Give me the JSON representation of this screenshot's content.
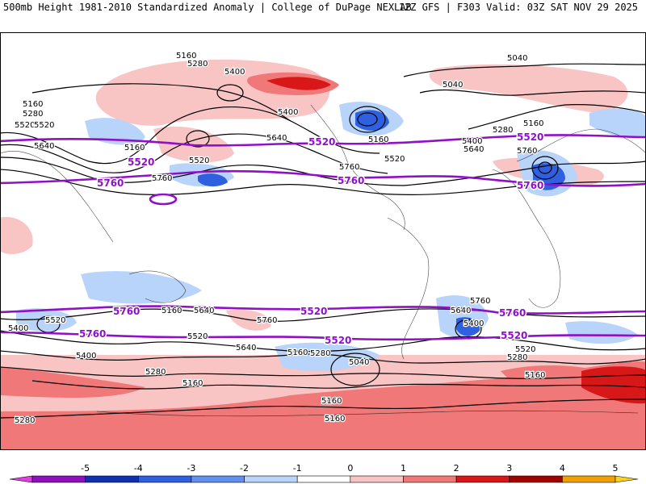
{
  "header": {
    "title_left": "500mb Height 1981-2010 Standardized Anomaly | College of DuPage NEXLAB",
    "title_right": "12Z GFS | F303 Valid: 03Z SAT NOV 29 2025"
  },
  "colorbar": {
    "ticks": [
      "-5",
      "-4",
      "-3",
      "-2",
      "-1",
      "0",
      "1",
      "2",
      "3",
      "4",
      "5"
    ],
    "colors": [
      "#e040e0",
      "#9010c0",
      "#1030b0",
      "#2e60e0",
      "#6090f0",
      "#b8d4fa",
      "#ffffff",
      "#f8c4c4",
      "#f07878",
      "#d81818",
      "#a00000",
      "#f0a000",
      "#f8d020"
    ]
  },
  "contour_labels": {
    "black": [
      "5160",
      "5280",
      "5400",
      "5040",
      "5040",
      "5160",
      "5280",
      "5400",
      "5520",
      "5640",
      "5160",
      "5520",
      "5760",
      "5640",
      "5400",
      "5520",
      "5160",
      "5640",
      "5760",
      "5160",
      "5520",
      "5760",
      "5280",
      "5400",
      "5640",
      "5760",
      "5520",
      "5520",
      "5640",
      "5400",
      "5280",
      "5160",
      "5280",
      "5040",
      "5160",
      "5760",
      "5640",
      "5400",
      "5520",
      "5280",
      "5160",
      "5160",
      "5280",
      "5160",
      "5160"
    ],
    "purple": [
      "5520",
      "5520",
      "5760",
      "5760",
      "5520",
      "5760",
      "5760",
      "5520",
      "5760",
      "5760",
      "5520",
      "5520"
    ]
  },
  "colors": {
    "purple_contour": "#9010c8",
    "contour": "#000000",
    "border": "#000000"
  }
}
